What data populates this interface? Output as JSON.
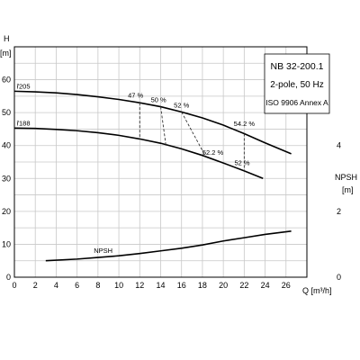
{
  "chart_data": {
    "type": "line",
    "legend_box": {
      "model": "NB 32-200.1",
      "speed": "2-pole, 50 Hz",
      "standard": "ISO 9906 Annex A"
    },
    "xlabel": "Q [m³/h]",
    "ylabel_left_top": "H",
    "ylabel_left_unit": "[m]",
    "ylabel_right_top": "NPSH",
    "ylabel_right_unit": "[m]",
    "xlim": [
      0,
      28
    ],
    "ylim": [
      0,
      70
    ],
    "npsh_ylim": [
      0,
      7
    ],
    "x_ticks": [
      "0",
      "2",
      "4",
      "6",
      "8",
      "10",
      "12",
      "14",
      "16",
      "18",
      "20",
      "22",
      "24",
      "26"
    ],
    "y_ticks": [
      "0",
      "10",
      "20",
      "30",
      "40",
      "50",
      "60"
    ],
    "npsh_ticks": [
      "0",
      "2",
      "4"
    ],
    "grid": true,
    "series": [
      {
        "name": "ř205",
        "x": [
          0,
          2,
          4,
          6,
          8,
          10,
          12,
          14,
          16,
          18,
          20,
          22,
          24,
          26.5
        ],
        "y": [
          56.5,
          56.3,
          56.0,
          55.5,
          54.8,
          54.0,
          53.0,
          51.8,
          50.2,
          48.4,
          46.2,
          43.6,
          40.8,
          37.5
        ]
      },
      {
        "name": "ř188",
        "x": [
          0,
          2,
          4,
          6,
          8,
          10,
          12,
          14,
          16,
          18,
          20,
          22,
          23.8
        ],
        "y": [
          45.3,
          45.2,
          44.9,
          44.5,
          43.9,
          43.1,
          42.0,
          40.7,
          39.0,
          37.0,
          34.7,
          32.3,
          30.0
        ]
      },
      {
        "name": "NPSH",
        "axis": "npsh",
        "x": [
          3,
          6,
          8,
          10,
          12,
          14,
          16,
          18,
          20,
          22,
          24,
          26.5
        ],
        "npsh": [
          0.5,
          0.55,
          0.6,
          0.65,
          0.72,
          0.8,
          0.88,
          0.98,
          1.1,
          1.2,
          1.3,
          1.4
        ]
      }
    ],
    "efficiency_lines": [
      {
        "label": "47 %",
        "x": [
          12,
          12
        ],
        "y": [
          53.0,
          42.0
        ],
        "label_pos": [
          11.6,
          54.5
        ]
      },
      {
        "label": "50 %",
        "x": [
          14,
          14.5
        ],
        "y": [
          51.8,
          40.2
        ],
        "label_pos": [
          13.8,
          53.2
        ]
      },
      {
        "label": "52 %",
        "x": [
          16,
          18.3
        ],
        "y": [
          50.2,
          36.7
        ],
        "label_pos": [
          16.0,
          51.5
        ]
      },
      {
        "label": "54.2 %",
        "x": [
          22,
          22
        ],
        "y": [
          43.6,
          32.3
        ],
        "label_pos": [
          22.0,
          46.0
        ]
      }
    ],
    "efficiency_labels_lower": [
      {
        "label": "52.2 %",
        "x": 19.0,
        "y": 37.2
      },
      {
        "label": "52 %",
        "x": 21.8,
        "y": 34.0
      }
    ]
  }
}
